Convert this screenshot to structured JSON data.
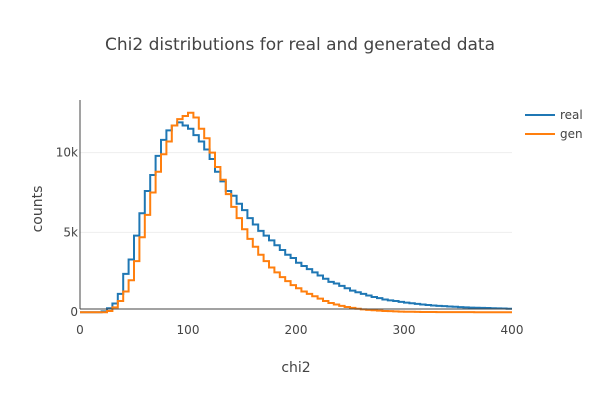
{
  "chart_data": {
    "type": "line",
    "line_shape": "step",
    "title": "Chi2 distributions for real and generated data",
    "xlabel": "chi2",
    "ylabel": "counts",
    "xlim": [
      0,
      400
    ],
    "ylim": [
      -300,
      13300
    ],
    "xticks": [
      0,
      100,
      200,
      300,
      400
    ],
    "xtick_labels": [
      "0",
      "100",
      "200",
      "300",
      "400"
    ],
    "yticks": [
      0,
      5000,
      10000
    ],
    "ytick_labels": [
      "0",
      "5k",
      "10k"
    ],
    "grid": true,
    "legend_position": "top-right",
    "bin_width": 5,
    "series": [
      {
        "name": "real",
        "color": "#1f77b4",
        "x": [
          0,
          5,
          10,
          15,
          20,
          25,
          30,
          35,
          40,
          45,
          50,
          55,
          60,
          65,
          70,
          75,
          80,
          85,
          90,
          95,
          100,
          105,
          110,
          115,
          120,
          125,
          130,
          135,
          140,
          145,
          150,
          155,
          160,
          165,
          170,
          175,
          180,
          185,
          190,
          195,
          200,
          205,
          210,
          215,
          220,
          225,
          230,
          235,
          240,
          245,
          250,
          255,
          260,
          265,
          270,
          275,
          280,
          285,
          290,
          295,
          300,
          305,
          310,
          315,
          320,
          325,
          330,
          335,
          340,
          345,
          350,
          355,
          360,
          365,
          370,
          375,
          380,
          385,
          390,
          395
        ],
        "values": [
          0,
          0,
          0,
          0,
          50,
          250,
          550,
          1150,
          2400,
          3300,
          4800,
          6200,
          7600,
          8600,
          9800,
          10800,
          11400,
          11700,
          11900,
          11700,
          11500,
          11100,
          10700,
          10200,
          9600,
          8800,
          8200,
          7600,
          7300,
          6800,
          6400,
          5900,
          5500,
          5100,
          4800,
          4500,
          4200,
          3900,
          3600,
          3400,
          3100,
          2900,
          2700,
          2500,
          2300,
          2100,
          1900,
          1800,
          1650,
          1500,
          1350,
          1250,
          1150,
          1050,
          950,
          880,
          800,
          740,
          700,
          650,
          600,
          560,
          520,
          480,
          450,
          420,
          400,
          380,
          360,
          340,
          320,
          300,
          290,
          280,
          270,
          260,
          250,
          240,
          230,
          220
        ]
      },
      {
        "name": "gen",
        "color": "#ff7f0e",
        "x": [
          0,
          5,
          10,
          15,
          20,
          25,
          30,
          35,
          40,
          45,
          50,
          55,
          60,
          65,
          70,
          75,
          80,
          85,
          90,
          95,
          100,
          105,
          110,
          115,
          120,
          125,
          130,
          135,
          140,
          145,
          150,
          155,
          160,
          165,
          170,
          175,
          180,
          185,
          190,
          195,
          200,
          205,
          210,
          215,
          220,
          225,
          230,
          235,
          240,
          245,
          250,
          255,
          260,
          265,
          270,
          275,
          280,
          285,
          290,
          295,
          300,
          305,
          310,
          315,
          320,
          325,
          330,
          335,
          340,
          345,
          350,
          355,
          360,
          365,
          370,
          375,
          380,
          385,
          390,
          395
        ],
        "values": [
          0,
          0,
          0,
          0,
          0,
          80,
          300,
          700,
          1300,
          2000,
          3200,
          4700,
          6100,
          7500,
          8800,
          9900,
          10700,
          11700,
          12100,
          12300,
          12500,
          12200,
          11500,
          10900,
          10000,
          9100,
          8300,
          7400,
          6600,
          5900,
          5200,
          4600,
          4100,
          3600,
          3200,
          2800,
          2500,
          2200,
          1950,
          1700,
          1500,
          1300,
          1150,
          1000,
          850,
          700,
          580,
          480,
          400,
          330,
          270,
          220,
          180,
          150,
          120,
          100,
          80,
          65,
          50,
          40,
          30,
          25,
          20,
          15,
          12,
          10,
          8,
          6,
          5,
          4,
          3,
          2,
          2,
          1,
          1,
          1,
          0,
          0,
          0,
          0
        ]
      }
    ]
  }
}
